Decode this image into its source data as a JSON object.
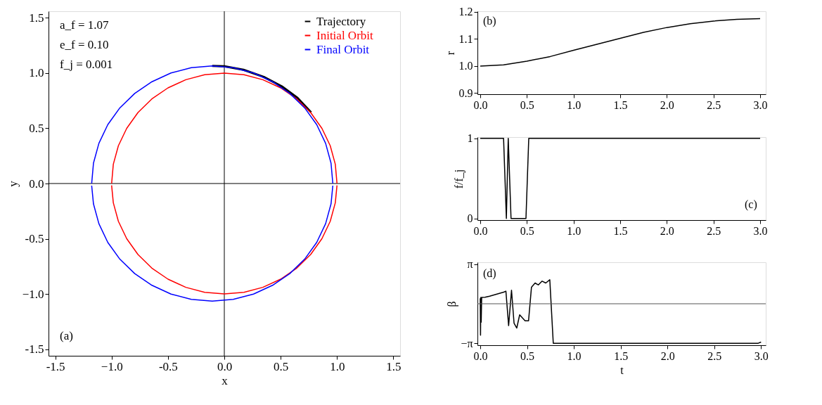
{
  "chart_data": [
    {
      "type": "line",
      "xlabel": "x",
      "ylabel": "y",
      "xlim": [
        -1.56,
        1.56
      ],
      "ylim": [
        -1.56,
        1.56
      ],
      "xticks": [
        -1.5,
        {
          "value": -1,
          "label": "−1.0"
        },
        -0.5,
        {
          "value": 0,
          "label": "0.0"
        },
        0.5,
        {
          "value": 1,
          "label": "1.0"
        },
        1.5
      ],
      "yticks": [
        -1.5,
        {
          "value": -1,
          "label": "−1.0"
        },
        -0.5,
        {
          "value": 0,
          "label": "0.0"
        },
        0.5,
        {
          "value": 1,
          "label": "1.0"
        },
        1.5
      ],
      "legend": "top right",
      "grid": false,
      "annotations": [
        "a_f = 1.07",
        "e_f = 0.10",
        "f_j = 0.001",
        "(a)"
      ],
      "ref_lines": [
        {
          "axis": "x",
          "value": 0,
          "color": "#000000"
        },
        {
          "axis": "y",
          "value": 0,
          "color": "#000000"
        }
      ],
      "series": [
        {
          "name": "Trajectory",
          "color": "#000000",
          "x": [
            0.77,
            0.65,
            0.51,
            0.35,
            0.17,
            0.0,
            -0.107
          ],
          "values": [
            0.645,
            0.775,
            0.88,
            0.965,
            1.03,
            1.062,
            1.065
          ]
        },
        {
          "name": "Initial Orbit",
          "color": "#ff0000",
          "x": [
            1.0,
            0.985,
            0.94,
            0.866,
            0.766,
            0.643,
            0.5,
            0.342,
            0.174,
            0.0,
            -0.174,
            -0.342,
            -0.5,
            -0.643,
            -0.766,
            -0.866,
            -0.94,
            -0.985,
            -1.0
          ],
          "values": [
            0.0,
            0.174,
            0.342,
            0.5,
            0.643,
            0.766,
            0.866,
            0.94,
            0.985,
            1.0,
            0.985,
            0.94,
            0.866,
            0.766,
            0.643,
            0.5,
            0.342,
            0.174,
            0.0
          ]
        },
        {
          "color": "#ff0000",
          "x": [
            -1.0,
            -0.985,
            -0.94,
            -0.866,
            -0.766,
            -0.643,
            -0.5,
            -0.342,
            -0.174,
            0.0,
            0.174,
            0.342,
            0.5,
            0.643,
            0.766,
            0.866,
            0.94,
            0.985,
            1.0
          ],
          "values": [
            -0.017,
            -0.174,
            -0.342,
            -0.5,
            -0.643,
            -0.766,
            -0.866,
            -0.94,
            -0.985,
            -1.0,
            -0.985,
            -0.94,
            -0.866,
            -0.766,
            -0.643,
            -0.5,
            -0.342,
            -0.174,
            -0.017
          ]
        },
        {
          "name": "Final Orbit",
          "color": "#0000ff",
          "x": [
            0.963,
            0.947,
            0.899,
            0.82,
            0.713,
            0.581,
            0.428,
            0.259,
            0.079,
            -0.107,
            -0.293,
            -0.473,
            -0.642,
            -0.795,
            -0.927,
            -1.034,
            -1.113,
            -1.161,
            -1.177
          ],
          "values": [
            0.0,
            0.185,
            0.364,
            0.533,
            0.685,
            0.816,
            0.922,
            1.001,
            1.049,
            1.065,
            1.049,
            1.001,
            0.922,
            0.816,
            0.685,
            0.533,
            0.364,
            0.185,
            0.0
          ]
        },
        {
          "color": "#0000ff",
          "x": [
            -1.177,
            -1.161,
            -1.113,
            -1.034,
            -0.927,
            -0.795,
            -0.642,
            -0.473,
            -0.293,
            -0.107,
            0.079,
            0.259,
            0.428,
            0.581,
            0.713,
            0.82,
            0.899,
            0.947,
            0.963
          ],
          "values": [
            -0.019,
            -0.185,
            -0.364,
            -0.533,
            -0.685,
            -0.816,
            -0.922,
            -1.001,
            -1.049,
            -1.065,
            -1.049,
            -1.001,
            -0.922,
            -0.816,
            -0.685,
            -0.533,
            -0.364,
            -0.185,
            -0.019
          ]
        }
      ]
    },
    {
      "type": "line",
      "ylabel": "r",
      "xlim": [
        -0.03,
        3.06
      ],
      "ylim": [
        0.896,
        1.202
      ],
      "xticks": [
        {
          "value": 0,
          "label": "0.0"
        },
        0.5,
        {
          "value": 1,
          "label": "1.0"
        },
        1.5,
        {
          "value": 2,
          "label": "2.0"
        },
        2.5,
        {
          "value": 3,
          "label": "3.0"
        }
      ],
      "yticks": [
        0.9,
        {
          "value": 1,
          "label": "1.0"
        },
        1.1,
        1.2
      ],
      "grid": false,
      "annotations": [
        "(b)"
      ],
      "series": [
        {
          "color": "#000000",
          "x": [
            0.0,
            0.25,
            0.5,
            0.75,
            1.0,
            1.25,
            1.5,
            1.75,
            2.0,
            2.25,
            2.5,
            2.75,
            3.0
          ],
          "values": [
            1.0,
            1.004,
            1.018,
            1.035,
            1.058,
            1.08,
            1.102,
            1.124,
            1.142,
            1.156,
            1.166,
            1.172,
            1.175
          ]
        }
      ]
    },
    {
      "type": "line",
      "ylabel": "f/f_j",
      "xlim": [
        -0.03,
        3.06
      ],
      "ylim": [
        -0.02,
        1.015
      ],
      "xticks": [
        {
          "value": 0,
          "label": "0.0"
        },
        0.5,
        {
          "value": 1,
          "label": "1.0"
        },
        1.5,
        {
          "value": 2,
          "label": "2.0"
        },
        2.5,
        {
          "value": 3,
          "label": "3.0"
        }
      ],
      "yticks": [
        0,
        1
      ],
      "grid": false,
      "annotations": [
        "(c)"
      ],
      "series": [
        {
          "color": "#000000",
          "x": [
            0.0,
            0.25,
            0.28,
            0.3,
            0.33,
            0.49,
            0.52,
            3.0
          ],
          "values": [
            1,
            1,
            0,
            1,
            0,
            0,
            1,
            1
          ]
        }
      ]
    },
    {
      "type": "line",
      "xlabel": "t",
      "ylabel": "β",
      "xlim": [
        -0.03,
        3.05
      ],
      "ylim": [
        -3.3,
        3.3
      ],
      "xticks": [
        {
          "value": 0,
          "label": "0.0"
        },
        0.5,
        {
          "value": 1,
          "label": "1.0"
        },
        1.5,
        {
          "value": 2,
          "label": "2.0"
        },
        2.5,
        {
          "value": 3,
          "label": "3.0"
        }
      ],
      "yticks": [
        {
          "value": 3.1416,
          "label": "π"
        },
        {
          "value": -3.1416,
          "label": "−π"
        }
      ],
      "grid": false,
      "annotations": [
        "(d)"
      ],
      "ref_lines": [
        {
          "axis": "y",
          "value": 0,
          "color": "#555555"
        }
      ],
      "series": [
        {
          "color": "#000000",
          "x": [
            0.0,
            0.003,
            0.006,
            0.01,
            0.015,
            0.05,
            0.1,
            0.25,
            0.274,
            0.303,
            0.334,
            0.361,
            0.39,
            0.421,
            0.479,
            0.516,
            0.547,
            0.586,
            0.62,
            0.661,
            0.7,
            0.743,
            0.78,
            2.97,
            3.0
          ],
          "values": [
            0.44,
            -2.5,
            0.5,
            -1.47,
            0.5,
            0.52,
            0.6,
            0.92,
            1.0,
            -1.74,
            1.08,
            -1.55,
            -1.93,
            -0.88,
            -1.35,
            -1.35,
            1.31,
            1.65,
            1.5,
            1.8,
            1.65,
            1.91,
            -3.14,
            -3.14,
            -3.05
          ]
        }
      ]
    }
  ]
}
